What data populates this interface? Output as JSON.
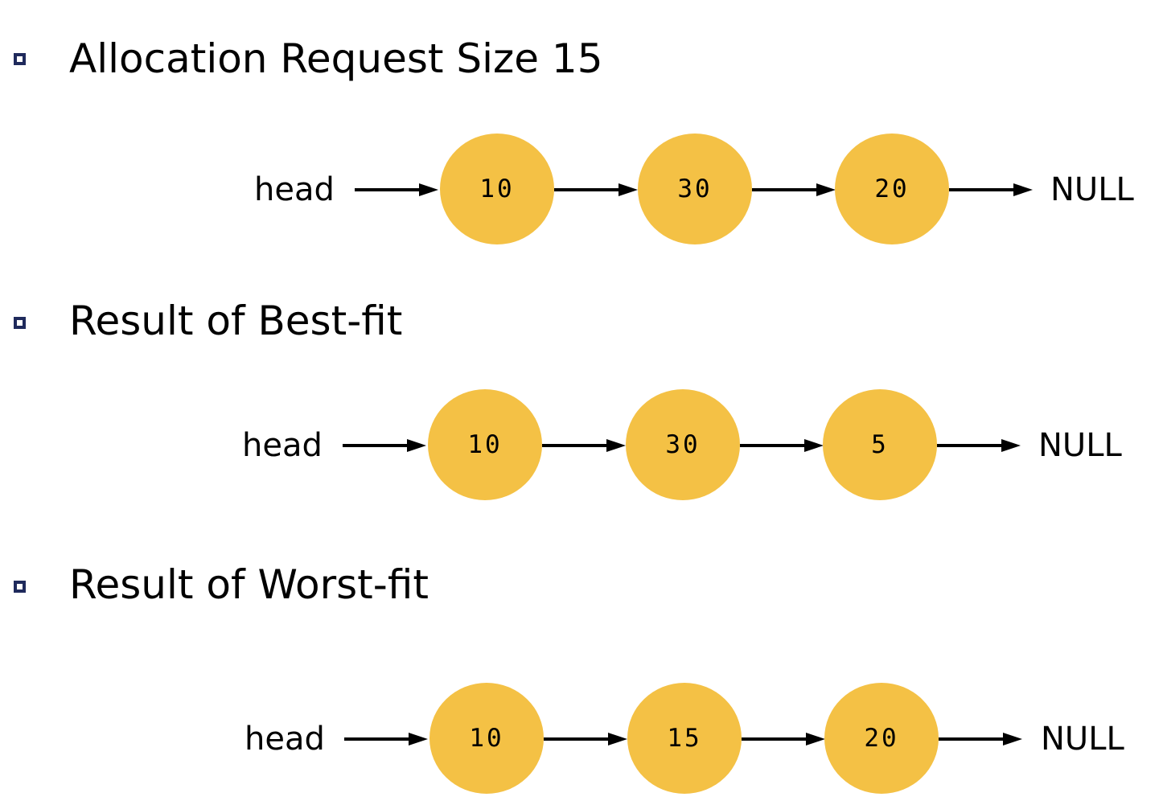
{
  "sections": [
    {
      "title": "Allocation Request Size 15",
      "head_label": "head",
      "nodes": [
        "10",
        "30",
        "20"
      ],
      "null_label": "NULL"
    },
    {
      "title": "Result of Best-fit",
      "head_label": "head",
      "nodes": [
        "10",
        "30",
        "5"
      ],
      "null_label": "NULL"
    },
    {
      "title": "Result of Worst-fit",
      "head_label": "head",
      "nodes": [
        "10",
        "15",
        "20"
      ],
      "null_label": "NULL"
    }
  ],
  "colors": {
    "node_fill": "#f4c145",
    "bullet": "#1f2a5c",
    "arrow": "#000000"
  },
  "icons": {
    "bullet": "hollow-square-bullet-icon",
    "link": "right-arrow-icon"
  }
}
